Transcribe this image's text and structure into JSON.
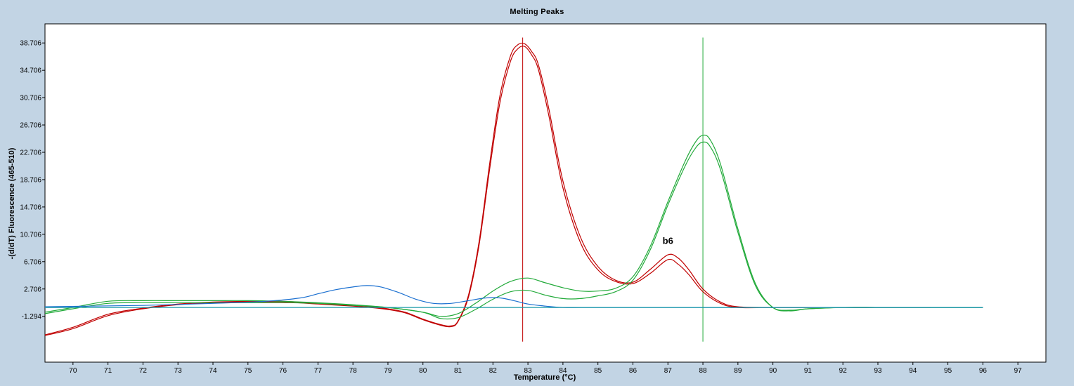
{
  "chart_data": {
    "type": "line",
    "title": "Melting Peaks",
    "xlabel": "Temperature (°C)",
    "ylabel": "-(d/dT) Fluorescence (465-510)",
    "xlim": [
      69.2,
      97.8
    ],
    "ylim": [
      -8.0,
      41.5
    ],
    "x_ticks": [
      70,
      71,
      72,
      73,
      74,
      75,
      76,
      77,
      78,
      79,
      80,
      81,
      82,
      83,
      84,
      85,
      86,
      87,
      88,
      89,
      90,
      91,
      92,
      93,
      94,
      95,
      96,
      97
    ],
    "y_ticks": [
      -1.294,
      2.706,
      6.706,
      10.706,
      14.706,
      18.706,
      22.706,
      26.706,
      30.706,
      34.706,
      38.706
    ],
    "y_tick_labels": [
      "-1.294",
      "2.706",
      "6.706",
      "10.706",
      "14.706",
      "18.706",
      "22.706",
      "26.706",
      "30.706",
      "34.706",
      "38.706"
    ],
    "grid": false,
    "colors": {
      "red": "#c00000",
      "green": "#22aa3a",
      "blue": "#1a6fd0",
      "teal": "#1a9aa8"
    },
    "vertical_markers": [
      {
        "x": 82.85,
        "color": "#c00000",
        "y_range": [
          -5.0,
          39.5
        ]
      },
      {
        "x": 88.0,
        "color": "#22aa3a",
        "y_range": [
          -5.0,
          39.5
        ]
      }
    ],
    "annotations": [
      {
        "text": "b6",
        "x": 87.0,
        "y": 9.3
      }
    ],
    "series": [
      {
        "color": "#c00000",
        "x": [
          69.2,
          70.0,
          71.0,
          72.0,
          73.0,
          74.0,
          75.0,
          76.0,
          77.0,
          78.0,
          78.5,
          79.0,
          79.5,
          80.0,
          80.5,
          80.8,
          81.0,
          81.3,
          81.6,
          81.9,
          82.2,
          82.5,
          82.7,
          82.9,
          83.1,
          83.3,
          83.6,
          84.0,
          84.5,
          85.0,
          85.5,
          86.0,
          86.5,
          87.0,
          87.3,
          87.6,
          88.0,
          88.5,
          89.0,
          90.0,
          91.0,
          92.0,
          93.0,
          94.5
        ],
        "y": [
          -4.1,
          -3.1,
          -1.2,
          -0.2,
          0.4,
          0.7,
          0.8,
          0.8,
          0.5,
          0.2,
          0.0,
          -0.3,
          -0.8,
          -1.8,
          -2.6,
          -2.8,
          -2.1,
          1.5,
          9.0,
          20.0,
          30.0,
          36.0,
          37.8,
          38.2,
          37.0,
          34.8,
          28.0,
          17.5,
          9.5,
          5.5,
          3.8,
          3.5,
          5.0,
          7.0,
          6.3,
          4.8,
          2.3,
          0.6,
          0.0,
          0.0,
          0.0,
          0.0,
          0.0,
          0.0
        ]
      },
      {
        "color": "#c00000",
        "x": [
          69.2,
          70.0,
          71.0,
          72.0,
          73.0,
          74.0,
          75.0,
          76.0,
          77.0,
          78.0,
          78.5,
          79.0,
          79.5,
          80.0,
          80.5,
          80.8,
          81.0,
          81.3,
          81.6,
          81.9,
          82.2,
          82.5,
          82.7,
          82.9,
          83.1,
          83.3,
          83.6,
          84.0,
          84.5,
          85.0,
          85.5,
          86.0,
          86.5,
          87.0,
          87.3,
          87.6,
          88.0,
          88.5,
          89.0,
          90.0,
          91.0,
          92.0,
          93.0,
          94.5
        ],
        "y": [
          -4.0,
          -2.9,
          -1.0,
          -0.1,
          0.5,
          0.8,
          0.9,
          0.9,
          0.6,
          0.3,
          0.1,
          -0.2,
          -0.7,
          -1.7,
          -2.5,
          -2.7,
          -2.0,
          1.8,
          9.5,
          20.8,
          31.0,
          36.8,
          38.4,
          38.6,
          37.5,
          35.5,
          29.0,
          18.5,
          10.3,
          6.0,
          4.0,
          3.7,
          5.6,
          7.7,
          7.2,
          5.5,
          2.7,
          0.8,
          0.1,
          0.0,
          0.0,
          0.0,
          0.0,
          0.0
        ]
      },
      {
        "color": "#22aa3a",
        "x": [
          69.2,
          70.0,
          71.0,
          72.0,
          73.0,
          74.0,
          75.0,
          76.0,
          77.0,
          78.0,
          79.0,
          80.0,
          80.5,
          81.0,
          81.5,
          82.0,
          82.5,
          83.0,
          83.5,
          84.0,
          84.5,
          85.0,
          85.5,
          86.0,
          86.5,
          87.0,
          87.5,
          87.8,
          88.0,
          88.2,
          88.5,
          89.0,
          89.5,
          90.0,
          90.5,
          91.0,
          92.0,
          93.0,
          94.0,
          95.0,
          96.0
        ],
        "y": [
          -0.9,
          -0.2,
          0.6,
          0.7,
          0.7,
          0.7,
          0.7,
          0.7,
          0.6,
          0.3,
          0.0,
          -0.7,
          -1.3,
          -0.9,
          0.6,
          2.4,
          3.8,
          4.3,
          3.6,
          2.9,
          2.4,
          2.4,
          2.8,
          4.5,
          9.0,
          15.5,
          21.5,
          24.3,
          25.2,
          24.6,
          21.0,
          11.5,
          3.5,
          0.0,
          -0.5,
          -0.2,
          0.0,
          0.0,
          0.0,
          0.0,
          0.0
        ]
      },
      {
        "color": "#22aa3a",
        "x": [
          69.2,
          70.0,
          71.0,
          72.0,
          73.0,
          74.0,
          75.0,
          76.0,
          77.0,
          78.0,
          79.0,
          80.0,
          80.5,
          81.0,
          81.5,
          82.0,
          82.5,
          83.0,
          83.5,
          84.0,
          84.5,
          85.0,
          85.5,
          86.0,
          86.5,
          87.0,
          87.5,
          87.8,
          88.0,
          88.2,
          88.5,
          89.0,
          89.5,
          90.0,
          90.5,
          91.0,
          92.0,
          93.0,
          94.0,
          95.0,
          96.0
        ],
        "y": [
          -0.7,
          0.0,
          0.9,
          1.0,
          1.0,
          1.0,
          1.0,
          0.9,
          0.7,
          0.4,
          0.0,
          -0.7,
          -1.6,
          -1.5,
          -0.3,
          1.2,
          2.3,
          2.5,
          1.8,
          1.3,
          1.3,
          1.7,
          2.3,
          4.0,
          8.5,
          15.0,
          20.8,
          23.4,
          24.2,
          23.6,
          20.2,
          11.0,
          3.2,
          0.0,
          -0.4,
          -0.2,
          0.0,
          0.0,
          0.0,
          0.0,
          0.0
        ]
      },
      {
        "color": "#1a6fd0",
        "x": [
          69.2,
          70.5,
          72.0,
          74.0,
          75.5,
          76.5,
          77.0,
          77.5,
          78.0,
          78.4,
          78.8,
          79.3,
          79.8,
          80.3,
          80.8,
          81.3,
          81.8,
          82.2,
          82.6,
          83.0,
          83.5,
          84.0,
          85.0,
          87.0,
          90.0,
          93.0,
          96.0
        ],
        "y": [
          0.1,
          0.2,
          0.3,
          0.6,
          0.9,
          1.4,
          2.0,
          2.6,
          3.0,
          3.2,
          3.0,
          2.2,
          1.2,
          0.6,
          0.6,
          1.0,
          1.4,
          1.4,
          1.0,
          0.5,
          0.2,
          0.0,
          0.0,
          0.0,
          0.0,
          0.0,
          0.0
        ]
      },
      {
        "color": "#1a9aa8",
        "x": [
          69.2,
          75.0,
          80.0,
          85.0,
          90.0,
          96.0
        ],
        "y": [
          0.0,
          0.0,
          0.0,
          0.0,
          0.0,
          0.0
        ]
      }
    ]
  }
}
